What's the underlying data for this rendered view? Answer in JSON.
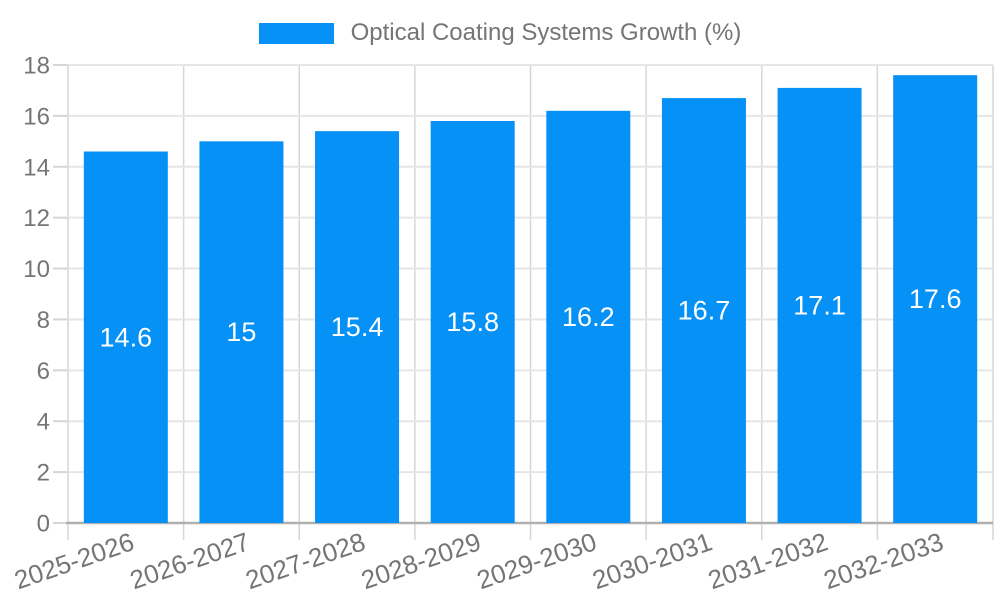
{
  "legend": {
    "label": "Optical Coating Systems Growth (%)"
  },
  "colors": {
    "bar": "#0591f5",
    "value_label": "#ffffff",
    "axis_text": "#757575",
    "legend_text": "#757575",
    "grid_horizontal": "#e6e6e6",
    "grid_vertical": "#d6d6d6",
    "baseline": "#b0b0b0",
    "background": "#ffffff"
  },
  "chart_data": {
    "type": "bar",
    "title": "Optical Coating Systems Growth (%)",
    "categories": [
      "2025-2026",
      "2026-2027",
      "2027-2028",
      "2028-2029",
      "2029-2030",
      "2030-2031",
      "2031-2032",
      "2032-2033"
    ],
    "values": [
      14.6,
      15,
      15.4,
      15.8,
      16.2,
      16.7,
      17.1,
      17.6
    ],
    "value_labels": [
      "14.6",
      "15",
      "15.4",
      "15.8",
      "16.2",
      "16.7",
      "17.1",
      "17.6"
    ],
    "xlabel": "",
    "ylabel": "",
    "ylim": [
      0,
      18
    ],
    "yticks": [
      0,
      2,
      4,
      6,
      8,
      10,
      12,
      14,
      16,
      18
    ],
    "grid": true,
    "legend_position": "top-center",
    "bar_label_position": "inside-center",
    "x_tick_rotation_deg": -19
  }
}
